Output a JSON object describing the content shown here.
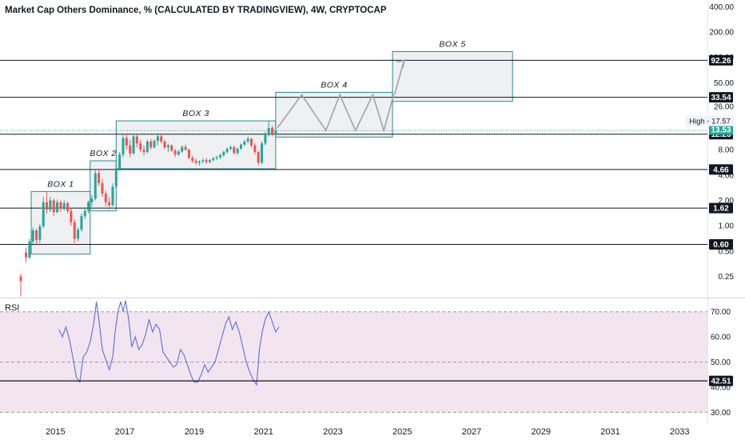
{
  "chart_data": {
    "type": "candlestick",
    "title": "Market Cap Others Dominance, % (CALCULATED BY TRADINGVIEW), 4W, CRYPTOCAP",
    "y_scale": "log",
    "ylim": [
      0.14,
      480
    ],
    "y_ticks": [
      "400.00",
      "200.00",
      "100.00",
      "50.00",
      "26.00",
      "8.00",
      "4.00",
      "2.00",
      "1.00",
      "0.50",
      "0.25"
    ],
    "x_ticks": [
      "2015",
      "2017",
      "2019",
      "2021",
      "2023",
      "2025",
      "2027",
      "2029",
      "2031",
      "2033"
    ],
    "x_range": [
      2013.4,
      2033.8
    ],
    "levels": [
      {
        "value": 92.26,
        "label": "92.26"
      },
      {
        "value": 33.54,
        "label": "33.54"
      },
      {
        "value": 12.23,
        "label": "12.23"
      },
      {
        "value": 4.66,
        "label": "4.66"
      },
      {
        "value": 1.62,
        "label": "1.62"
      },
      {
        "value": 0.6,
        "label": "0.60"
      }
    ],
    "last_price": {
      "value": 13.53,
      "label": "13.53"
    },
    "high_label": {
      "value": 17.57,
      "label": "High - 17.57"
    },
    "boxes": [
      {
        "name": "BOX 1",
        "x0": 2014.3,
        "x1": 2016.0,
        "y0": 0.46,
        "y1": 2.55
      },
      {
        "name": "BOX 2",
        "x0": 2016.0,
        "x1": 2016.75,
        "y0": 1.5,
        "y1": 5.9
      },
      {
        "name": "BOX 3",
        "x0": 2016.75,
        "x1": 2021.35,
        "y0": 4.75,
        "y1": 17.6
      },
      {
        "name": "BOX 4",
        "x0": 2021.35,
        "x1": 2024.72,
        "y0": 11.3,
        "y1": 38.4
      },
      {
        "name": "BOX 5",
        "x0": 2024.72,
        "x1": 2028.18,
        "y0": 30.0,
        "y1": 117.0
      }
    ],
    "projection_path": [
      [
        2021.4,
        14.5
      ],
      [
        2022.1,
        36
      ],
      [
        2022.8,
        13.5
      ],
      [
        2023.2,
        36
      ],
      [
        2023.65,
        13.5
      ],
      [
        2024.15,
        36
      ],
      [
        2024.47,
        13.5
      ],
      [
        2024.75,
        36
      ]
    ],
    "projection_arrow": [
      [
        2024.78,
        36
      ],
      [
        2025.05,
        92
      ]
    ],
    "candles": [
      {
        "x": 2014.0,
        "o": 0.25,
        "h": 0.27,
        "l": 0.145,
        "c": 0.22
      },
      {
        "x": 2014.15,
        "o": 0.48,
        "h": 0.55,
        "l": 0.37,
        "c": 0.42
      },
      {
        "x": 2014.25,
        "o": 0.42,
        "h": 0.7,
        "l": 0.4,
        "c": 0.65
      },
      {
        "x": 2014.35,
        "o": 0.65,
        "h": 0.95,
        "l": 0.58,
        "c": 0.88
      },
      {
        "x": 2014.45,
        "o": 0.88,
        "h": 0.92,
        "l": 0.6,
        "c": 0.68
      },
      {
        "x": 2014.55,
        "o": 0.68,
        "h": 1.05,
        "l": 0.62,
        "c": 0.98
      },
      {
        "x": 2014.65,
        "o": 0.98,
        "h": 2.2,
        "l": 0.95,
        "c": 1.9
      },
      {
        "x": 2014.75,
        "o": 1.9,
        "h": 2.5,
        "l": 1.4,
        "c": 1.55
      },
      {
        "x": 2014.85,
        "o": 1.55,
        "h": 2.2,
        "l": 1.45,
        "c": 2.0
      },
      {
        "x": 2014.95,
        "o": 2.0,
        "h": 2.1,
        "l": 1.3,
        "c": 1.45
      },
      {
        "x": 2015.05,
        "o": 1.45,
        "h": 2.05,
        "l": 1.4,
        "c": 1.9
      },
      {
        "x": 2015.15,
        "o": 1.9,
        "h": 2.0,
        "l": 1.45,
        "c": 1.6
      },
      {
        "x": 2015.25,
        "o": 1.6,
        "h": 2.0,
        "l": 1.5,
        "c": 1.85
      },
      {
        "x": 2015.35,
        "o": 1.85,
        "h": 1.95,
        "l": 1.4,
        "c": 1.5
      },
      {
        "x": 2015.45,
        "o": 1.5,
        "h": 1.6,
        "l": 1.0,
        "c": 1.1
      },
      {
        "x": 2015.55,
        "o": 1.1,
        "h": 1.2,
        "l": 0.62,
        "c": 0.7
      },
      {
        "x": 2015.65,
        "o": 0.7,
        "h": 0.95,
        "l": 0.65,
        "c": 0.9
      },
      {
        "x": 2015.75,
        "o": 0.9,
        "h": 1.4,
        "l": 0.85,
        "c": 1.3
      },
      {
        "x": 2015.85,
        "o": 1.3,
        "h": 1.6,
        "l": 1.2,
        "c": 1.5
      },
      {
        "x": 2015.95,
        "o": 1.5,
        "h": 2.0,
        "l": 1.4,
        "c": 1.9
      },
      {
        "x": 2016.05,
        "o": 1.9,
        "h": 2.3,
        "l": 1.7,
        "c": 2.1
      },
      {
        "x": 2016.15,
        "o": 2.1,
        "h": 4.6,
        "l": 2.0,
        "c": 4.2
      },
      {
        "x": 2016.25,
        "o": 4.2,
        "h": 4.8,
        "l": 3.0,
        "c": 3.2
      },
      {
        "x": 2016.35,
        "o": 3.2,
        "h": 3.6,
        "l": 2.2,
        "c": 2.4
      },
      {
        "x": 2016.45,
        "o": 2.4,
        "h": 2.6,
        "l": 1.7,
        "c": 1.9
      },
      {
        "x": 2016.55,
        "o": 1.9,
        "h": 2.2,
        "l": 1.55,
        "c": 1.75
      },
      {
        "x": 2016.65,
        "o": 1.75,
        "h": 3.2,
        "l": 1.7,
        "c": 2.9
      },
      {
        "x": 2016.75,
        "o": 2.9,
        "h": 5.0,
        "l": 2.8,
        "c": 4.8
      },
      {
        "x": 2016.85,
        "o": 4.8,
        "h": 7.5,
        "l": 4.5,
        "c": 7.0
      },
      {
        "x": 2016.95,
        "o": 7.0,
        "h": 12.0,
        "l": 6.5,
        "c": 11.0
      },
      {
        "x": 2017.05,
        "o": 11.0,
        "h": 12.5,
        "l": 8.0,
        "c": 9.0
      },
      {
        "x": 2017.15,
        "o": 9.0,
        "h": 10.5,
        "l": 6.5,
        "c": 7.2
      },
      {
        "x": 2017.25,
        "o": 7.2,
        "h": 12.5,
        "l": 7.0,
        "c": 11.5
      },
      {
        "x": 2017.35,
        "o": 11.5,
        "h": 12.0,
        "l": 8.5,
        "c": 9.5
      },
      {
        "x": 2017.45,
        "o": 9.5,
        "h": 10.5,
        "l": 7.5,
        "c": 8.0
      },
      {
        "x": 2017.55,
        "o": 8.0,
        "h": 9.0,
        "l": 6.8,
        "c": 7.5
      },
      {
        "x": 2017.65,
        "o": 7.5,
        "h": 10.5,
        "l": 7.3,
        "c": 10.0
      },
      {
        "x": 2017.75,
        "o": 10.0,
        "h": 10.8,
        "l": 8.0,
        "c": 8.5
      },
      {
        "x": 2017.85,
        "o": 8.5,
        "h": 10.6,
        "l": 8.3,
        "c": 10.2
      },
      {
        "x": 2017.95,
        "o": 10.2,
        "h": 12.0,
        "l": 9.0,
        "c": 11.5
      },
      {
        "x": 2018.05,
        "o": 11.5,
        "h": 12.3,
        "l": 9.5,
        "c": 10.0
      },
      {
        "x": 2018.15,
        "o": 10.0,
        "h": 10.5,
        "l": 8.0,
        "c": 8.5
      },
      {
        "x": 2018.25,
        "o": 8.5,
        "h": 9.5,
        "l": 7.5,
        "c": 9.0
      },
      {
        "x": 2018.35,
        "o": 9.0,
        "h": 9.2,
        "l": 7.5,
        "c": 7.8
      },
      {
        "x": 2018.45,
        "o": 7.8,
        "h": 8.2,
        "l": 6.5,
        "c": 7.0
      },
      {
        "x": 2018.55,
        "o": 7.0,
        "h": 8.0,
        "l": 6.8,
        "c": 7.6
      },
      {
        "x": 2018.65,
        "o": 7.6,
        "h": 9.0,
        "l": 7.3,
        "c": 8.6
      },
      {
        "x": 2018.75,
        "o": 8.6,
        "h": 9.2,
        "l": 7.8,
        "c": 8.0
      },
      {
        "x": 2018.85,
        "o": 8.0,
        "h": 8.2,
        "l": 6.2,
        "c": 6.4
      },
      {
        "x": 2018.95,
        "o": 6.4,
        "h": 6.8,
        "l": 5.6,
        "c": 5.9
      },
      {
        "x": 2019.05,
        "o": 5.9,
        "h": 6.3,
        "l": 5.3,
        "c": 5.6
      },
      {
        "x": 2019.15,
        "o": 5.6,
        "h": 6.0,
        "l": 5.2,
        "c": 5.8
      },
      {
        "x": 2019.25,
        "o": 5.8,
        "h": 6.3,
        "l": 5.5,
        "c": 6.0
      },
      {
        "x": 2019.35,
        "o": 6.0,
        "h": 6.4,
        "l": 5.4,
        "c": 5.7
      },
      {
        "x": 2019.45,
        "o": 5.7,
        "h": 6.2,
        "l": 5.5,
        "c": 6.0
      },
      {
        "x": 2019.55,
        "o": 6.0,
        "h": 6.6,
        "l": 5.8,
        "c": 6.3
      },
      {
        "x": 2019.65,
        "o": 6.3,
        "h": 6.8,
        "l": 6.0,
        "c": 6.5
      },
      {
        "x": 2019.75,
        "o": 6.5,
        "h": 7.2,
        "l": 6.2,
        "c": 6.9
      },
      {
        "x": 2019.85,
        "o": 6.9,
        "h": 7.8,
        "l": 6.6,
        "c": 7.5
      },
      {
        "x": 2019.95,
        "o": 7.5,
        "h": 8.5,
        "l": 7.2,
        "c": 8.2
      },
      {
        "x": 2020.05,
        "o": 8.2,
        "h": 9.0,
        "l": 7.8,
        "c": 8.6
      },
      {
        "x": 2020.15,
        "o": 8.6,
        "h": 8.9,
        "l": 7.0,
        "c": 7.3
      },
      {
        "x": 2020.25,
        "o": 7.3,
        "h": 8.5,
        "l": 7.0,
        "c": 8.2
      },
      {
        "x": 2020.35,
        "o": 8.2,
        "h": 9.5,
        "l": 8.0,
        "c": 9.2
      },
      {
        "x": 2020.45,
        "o": 9.2,
        "h": 10.5,
        "l": 8.8,
        "c": 10.0
      },
      {
        "x": 2020.55,
        "o": 10.0,
        "h": 11.5,
        "l": 9.5,
        "c": 10.8
      },
      {
        "x": 2020.65,
        "o": 10.8,
        "h": 11.0,
        "l": 8.5,
        "c": 9.0
      },
      {
        "x": 2020.75,
        "o": 9.0,
        "h": 9.5,
        "l": 7.0,
        "c": 7.5
      },
      {
        "x": 2020.85,
        "o": 7.5,
        "h": 7.8,
        "l": 5.2,
        "c": 5.6
      },
      {
        "x": 2020.95,
        "o": 5.6,
        "h": 10.0,
        "l": 5.4,
        "c": 9.5
      },
      {
        "x": 2021.05,
        "o": 9.5,
        "h": 13.0,
        "l": 9.0,
        "c": 12.5
      },
      {
        "x": 2021.15,
        "o": 12.5,
        "h": 17.57,
        "l": 11.5,
        "c": 14.5
      },
      {
        "x": 2021.25,
        "o": 14.5,
        "h": 15.5,
        "l": 11.5,
        "c": 12.2
      },
      {
        "x": 2021.35,
        "o": 12.2,
        "h": 14.0,
        "l": 12.0,
        "c": 13.53
      }
    ],
    "rsi": {
      "label": "RSI",
      "ylim": [
        26,
        75
      ],
      "y_ticks": [
        "70.00",
        "60.00",
        "50.00",
        "40.00",
        "30.00"
      ],
      "band": [
        30,
        70
      ],
      "level": {
        "value": 42.51,
        "label": "42.51"
      },
      "points": [
        [
          2015.1,
          63
        ],
        [
          2015.2,
          60
        ],
        [
          2015.3,
          64
        ],
        [
          2015.4,
          59
        ],
        [
          2015.5,
          52
        ],
        [
          2015.6,
          44
        ],
        [
          2015.7,
          42
        ],
        [
          2015.8,
          52
        ],
        [
          2015.9,
          54
        ],
        [
          2016.0,
          58
        ],
        [
          2016.1,
          65
        ],
        [
          2016.18,
          74
        ],
        [
          2016.27,
          65
        ],
        [
          2016.35,
          55
        ],
        [
          2016.45,
          51
        ],
        [
          2016.55,
          47
        ],
        [
          2016.65,
          52
        ],
        [
          2016.72,
          62
        ],
        [
          2016.8,
          70
        ],
        [
          2016.88,
          74
        ],
        [
          2016.95,
          70
        ],
        [
          2017.02,
          80
        ],
        [
          2017.1,
          68
        ],
        [
          2017.2,
          56
        ],
        [
          2017.3,
          60
        ],
        [
          2017.4,
          55
        ],
        [
          2017.5,
          57
        ],
        [
          2017.6,
          61
        ],
        [
          2017.7,
          67
        ],
        [
          2017.8,
          62
        ],
        [
          2017.9,
          65
        ],
        [
          2018.0,
          63
        ],
        [
          2018.1,
          54
        ],
        [
          2018.2,
          52
        ],
        [
          2018.3,
          50
        ],
        [
          2018.4,
          48
        ],
        [
          2018.5,
          49
        ],
        [
          2018.6,
          55
        ],
        [
          2018.7,
          53
        ],
        [
          2018.8,
          49
        ],
        [
          2018.9,
          45
        ],
        [
          2019.0,
          42
        ],
        [
          2019.1,
          42
        ],
        [
          2019.2,
          45
        ],
        [
          2019.3,
          49
        ],
        [
          2019.4,
          46
        ],
        [
          2019.5,
          48
        ],
        [
          2019.6,
          50
        ],
        [
          2019.7,
          55
        ],
        [
          2019.8,
          60
        ],
        [
          2019.9,
          65
        ],
        [
          2020.0,
          68
        ],
        [
          2020.1,
          63
        ],
        [
          2020.2,
          66
        ],
        [
          2020.3,
          62
        ],
        [
          2020.4,
          56
        ],
        [
          2020.5,
          50
        ],
        [
          2020.6,
          46
        ],
        [
          2020.7,
          43
        ],
        [
          2020.8,
          41
        ],
        [
          2020.88,
          55
        ],
        [
          2020.96,
          62
        ],
        [
          2021.05,
          67
        ],
        [
          2021.15,
          70
        ],
        [
          2021.25,
          66
        ],
        [
          2021.35,
          62
        ],
        [
          2021.45,
          64
        ]
      ]
    }
  }
}
